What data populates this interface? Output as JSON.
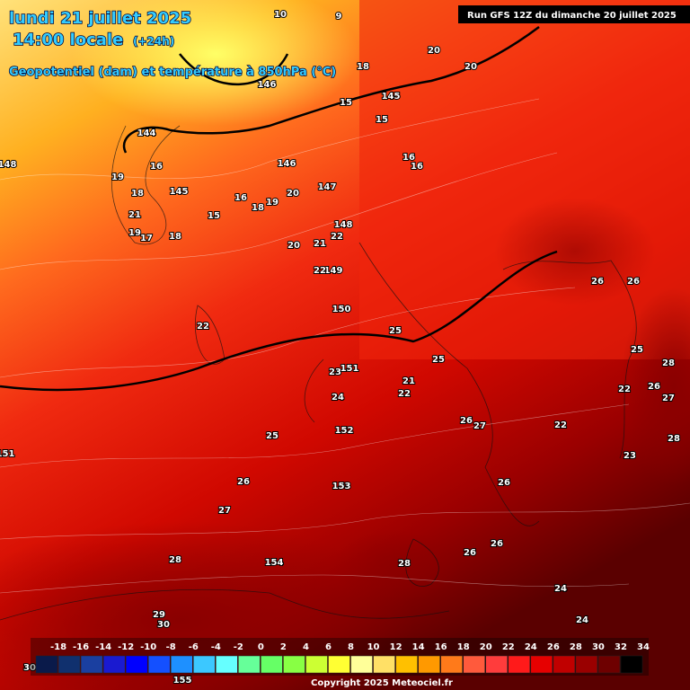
{
  "header": {
    "title": "lundi 21 juillet 2025",
    "subtitle": "14:00 locale",
    "subtitle_note": "(+24h)",
    "description": "Geopotentiel (dam) et température à 850hPa (°C)",
    "run": "Run GFS 12Z du dimanche 20 juillet 2025"
  },
  "legend": {
    "ticks": [
      -18,
      -16,
      -14,
      -12,
      -10,
      -8,
      -6,
      -4,
      -2,
      0,
      2,
      4,
      6,
      8,
      10,
      12,
      14,
      16,
      18,
      20,
      22,
      24,
      26,
      28,
      30,
      32,
      34
    ],
    "colors": [
      "#0a1a4a",
      "#10306e",
      "#1a3fa0",
      "#1a1ad0",
      "#0000ff",
      "#1450ff",
      "#1e90ff",
      "#3cc8ff",
      "#66ffff",
      "#66ff99",
      "#66ff66",
      "#88ff44",
      "#ccff33",
      "#ffff33",
      "#ffff99",
      "#ffe066",
      "#ffc000",
      "#ff9900",
      "#ff7a1a",
      "#ff5a3c",
      "#ff3c3c",
      "#ff1a1a",
      "#e60000",
      "#c00000",
      "#9a0000",
      "#6e0000",
      "#000000"
    ]
  },
  "map_labels": {
    "geopotential": [
      144,
      145,
      146,
      147,
      148,
      149,
      150,
      151,
      152,
      153,
      154,
      155,
      145,
      148,
      151,
      146
    ],
    "temperature": [
      20,
      20,
      18,
      15,
      15,
      16,
      16,
      16,
      19,
      18,
      21,
      19,
      17,
      18,
      16,
      18,
      19,
      20,
      15,
      20,
      21,
      22,
      22,
      22,
      25,
      25,
      23,
      21,
      22,
      24,
      26,
      27,
      25,
      26,
      27,
      26,
      26,
      26,
      28,
      28,
      24,
      24,
      22,
      22,
      25,
      26,
      26,
      28,
      27,
      26,
      28,
      23,
      29,
      30,
      30,
      10,
      9
    ]
  },
  "footer": {
    "copyright": "Copyright 2025 Meteociel.fr"
  }
}
